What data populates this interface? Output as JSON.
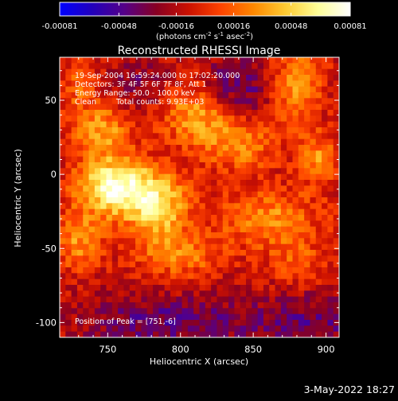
{
  "colorbar": {
    "tick_labels": [
      "-0.00081",
      "-0.00048",
      "-0.00016",
      "0.00016",
      "0.00048",
      "0.00081"
    ],
    "tick_values": [
      -0.00081,
      -0.00048,
      -0.00016,
      0.00016,
      0.00048,
      0.00081
    ],
    "range": [
      -0.00081,
      0.00081
    ],
    "unit_base": "(photons cm",
    "unit_exp1": "-2",
    "unit_mid1": " s",
    "unit_exp2": "-1",
    "unit_mid2": " asec",
    "unit_exp3": "-2",
    "unit_end": ")",
    "colors": [
      "#0000ff",
      "#2200bb",
      "#550088",
      "#880022",
      "#cc1100",
      "#ff4400",
      "#ff8800",
      "#ffcc33",
      "#ffff99",
      "#ffffff"
    ]
  },
  "plot": {
    "title": "Reconstructed RHESSI Image",
    "x_label": "Heliocentric X (arcsec)",
    "y_label": "Heliocentric Y (arcsec)",
    "x_range": [
      717,
      909
    ],
    "y_range": [
      -110,
      79
    ],
    "x_ticks": [
      750,
      800,
      850,
      900
    ],
    "y_ticks": [
      50,
      0,
      -50,
      -100
    ],
    "x_tick_labels": [
      "750",
      "800",
      "850",
      "900"
    ],
    "y_tick_labels": [
      "50",
      "0",
      "-50",
      "-100"
    ],
    "info": {
      "line1": "19-Sep-2004 16:59:24.000 to 17:02:20.000",
      "line2": "Detectors: 3F 4F 5F 6F 7F 8F, Att 1",
      "line3": "Energy Range: 50.0 - 100.0 keV",
      "line4_a": "Clean",
      "line4_b": "Total counts: 9.93E+03"
    },
    "peak_text": "Position of Peak = [751,-6]"
  },
  "footer": {
    "date_stamp": "3-May-2022 18:27"
  },
  "chart_data": {
    "type": "heatmap",
    "title": "Reconstructed RHESSI Image",
    "xlabel": "Heliocentric X (arcsec)",
    "ylabel": "Heliocentric Y (arcsec)",
    "xlim": [
      717,
      909
    ],
    "ylim": [
      -110,
      79
    ],
    "zlim": [
      -0.00081,
      0.00081
    ],
    "peak": [
      751,
      -6
    ],
    "blobs": [
      {
        "x": 755,
        "y": -8,
        "sigma_x": 18,
        "sigma_y": 14,
        "amp": 0.00085
      },
      {
        "x": 785,
        "y": -22,
        "sigma_x": 15,
        "sigma_y": 16,
        "amp": 0.0006
      },
      {
        "x": 745,
        "y": 30,
        "sigma_x": 14,
        "sigma_y": 12,
        "amp": 0.00045
      },
      {
        "x": 810,
        "y": 40,
        "sigma_x": 16,
        "sigma_y": 14,
        "amp": 0.00045
      },
      {
        "x": 840,
        "y": 20,
        "sigma_x": 18,
        "sigma_y": 12,
        "amp": 0.0004
      },
      {
        "x": 880,
        "y": 60,
        "sigma_x": 12,
        "sigma_y": 18,
        "amp": 0.00045
      },
      {
        "x": 895,
        "y": 10,
        "sigma_x": 10,
        "sigma_y": 12,
        "amp": 0.0004
      },
      {
        "x": 860,
        "y": -30,
        "sigma_x": 25,
        "sigma_y": 14,
        "amp": 0.0004
      },
      {
        "x": 800,
        "y": -55,
        "sigma_x": 20,
        "sigma_y": 10,
        "amp": 0.00035
      },
      {
        "x": 880,
        "y": -60,
        "sigma_x": 14,
        "sigma_y": 10,
        "amp": 0.00025
      },
      {
        "x": 730,
        "y": -45,
        "sigma_x": 12,
        "sigma_y": 14,
        "amp": 0.0004
      },
      {
        "x": 730,
        "y": 60,
        "sigma_x": 10,
        "sigma_y": 12,
        "amp": 0.00025
      }
    ],
    "lows": [
      {
        "x": 840,
        "y": 60,
        "sigma_x": 16,
        "sigma_y": 14,
        "amp": -0.0003
      },
      {
        "x": 770,
        "y": 60,
        "sigma_x": 14,
        "sigma_y": 10,
        "amp": -0.0002
      },
      {
        "x": 790,
        "y": -100,
        "sigma_x": 40,
        "sigma_y": 12,
        "amp": -0.0003
      },
      {
        "x": 890,
        "y": -100,
        "sigma_x": 30,
        "sigma_y": 14,
        "amp": -0.00025
      }
    ]
  }
}
